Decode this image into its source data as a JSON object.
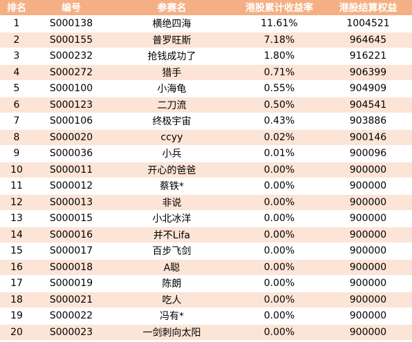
{
  "table": {
    "headers": [
      "排名",
      "编号",
      "参赛名",
      "港股累计收益率",
      "港股结算权益"
    ],
    "rows": [
      [
        "1",
        "S000138",
        "横绝四海",
        "11.61%",
        "1004521"
      ],
      [
        "2",
        "S000155",
        "普罗旺斯",
        "7.18%",
        "964645"
      ],
      [
        "3",
        "S000232",
        "抢钱成功了",
        "1.80%",
        "916221"
      ],
      [
        "4",
        "S000272",
        "猎手",
        "0.71%",
        "906399"
      ],
      [
        "5",
        "S000100",
        "小海龟",
        "0.55%",
        "904909"
      ],
      [
        "6",
        "S000123",
        "二刀流",
        "0.50%",
        "904541"
      ],
      [
        "7",
        "S000106",
        "终极宇宙",
        "0.43%",
        "903886"
      ],
      [
        "8",
        "S000020",
        "ccyy",
        "0.02%",
        "900146"
      ],
      [
        "9",
        "S000036",
        "小兵",
        "0.01%",
        "900096"
      ],
      [
        "10",
        "S000011",
        "开心的爸爸",
        "0.00%",
        "900000"
      ],
      [
        "11",
        "S000012",
        "蔡铁*",
        "0.00%",
        "900000"
      ],
      [
        "12",
        "S000013",
        "非说",
        "0.00%",
        "900000"
      ],
      [
        "13",
        "S000015",
        "小北冰洋",
        "0.00%",
        "900000"
      ],
      [
        "14",
        "S000016",
        "并不Lifa",
        "0.00%",
        "900000"
      ],
      [
        "15",
        "S000017",
        "百步飞剑",
        "0.00%",
        "900000"
      ],
      [
        "16",
        "S000018",
        "A聪",
        "0.00%",
        "900000"
      ],
      [
        "17",
        "S000019",
        "陈朗",
        "0.00%",
        "900000"
      ],
      [
        "18",
        "S000021",
        "吃人",
        "0.00%",
        "900000"
      ],
      [
        "19",
        "S000022",
        "冯有*",
        "0.00%",
        "900000"
      ],
      [
        "20",
        "S000023",
        "一剑刺向太阳",
        "0.00%",
        "900000"
      ]
    ]
  },
  "colors": {
    "header_bg": "#f4b084",
    "header_text": "#ffffff",
    "row_stripe": "#fce4d6",
    "row_plain": "#ffffff"
  }
}
